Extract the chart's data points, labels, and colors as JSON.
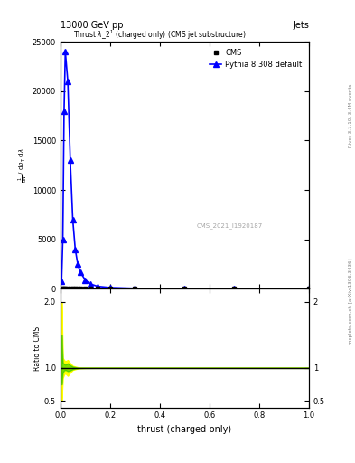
{
  "title_top": "13000 GeV pp",
  "title_right": "Jets",
  "plot_title": "Thrust $\\lambda$_2$^1$ (charged only) (CMS jet substructure)",
  "cms_label": "CMS",
  "pythia_label": "Pythia 8.308 default",
  "watermark": "CMS_2021_I1920187",
  "right_label": "Rivet 3.1.10, 3.4M events",
  "arxiv_label": "mcplots.cern.ch [arXiv:1306.3436]",
  "xlabel": "thrust (charged-only)",
  "ylabel_main": "$\\frac{1}{\\mathrm{d}N}$ / $\\mathrm{d}p_\\mathrm{T}$ $\\mathrm{d}\\lambda$",
  "ylabel_ratio": "Ratio to CMS",
  "cms_x": [
    0.005,
    0.01,
    0.015,
    0.02,
    0.03,
    0.04,
    0.05,
    0.06,
    0.07,
    0.08,
    0.1,
    0.12,
    0.15,
    0.2,
    0.3,
    0.5,
    0.7,
    1.0
  ],
  "cms_y": [
    0,
    0,
    0,
    0,
    0,
    0,
    0,
    0,
    0,
    0,
    0,
    0,
    0,
    0,
    0,
    0,
    0,
    0
  ],
  "pythia_x": [
    0.005,
    0.01,
    0.015,
    0.02,
    0.03,
    0.04,
    0.05,
    0.06,
    0.07,
    0.08,
    0.1,
    0.12,
    0.15,
    0.2,
    0.3,
    0.5,
    0.7,
    1.0
  ],
  "pythia_y": [
    800,
    5000,
    18000,
    24000,
    21000,
    13000,
    7000,
    4000,
    2500,
    1700,
    900,
    500,
    250,
    130,
    50,
    10,
    2,
    0
  ],
  "ratio_x": [
    0.005,
    0.01,
    0.015,
    0.02,
    0.03,
    0.04,
    0.05,
    0.06,
    0.07,
    0.08,
    0.1,
    0.12,
    0.15,
    0.2,
    0.3,
    0.5,
    0.7,
    1.0
  ],
  "ratio_y": [
    1.0,
    1.0,
    1.0,
    1.0,
    1.0,
    1.0,
    1.0,
    1.0,
    1.0,
    1.0,
    1.0,
    1.0,
    1.0,
    1.0,
    1.0,
    1.0,
    1.0,
    1.0
  ],
  "ratio_green_band": [
    0.97,
    1.03
  ],
  "ratio_yellow_band_early_low": [
    0.75,
    1.25
  ],
  "ylim_main": [
    0,
    25000
  ],
  "ylim_ratio": [
    0.4,
    2.2
  ],
  "yticks_main": [
    0,
    5000,
    10000,
    15000,
    20000,
    25000
  ],
  "yticks_ratio": [
    0.5,
    1.0,
    2.0
  ],
  "xlim": [
    0.0,
    1.0
  ],
  "cms_color": "#000000",
  "pythia_color": "#0000ff",
  "green_color": "#00bb00",
  "yellow_color": "#ffff00",
  "bg_color": "#ffffff"
}
